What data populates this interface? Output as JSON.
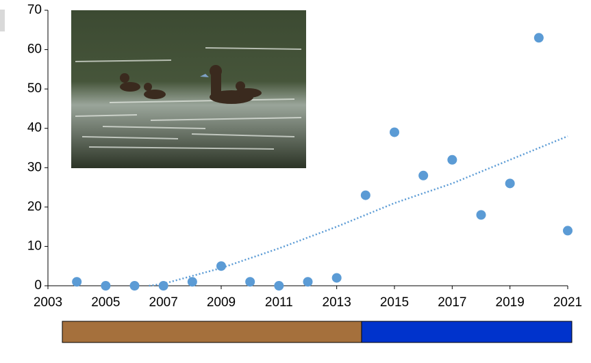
{
  "chart_data": {
    "type": "scatter",
    "x": [
      2004,
      2005,
      2006,
      2007,
      2008,
      2009,
      2010,
      2011,
      2012,
      2013,
      2014,
      2015,
      2016,
      2017,
      2018,
      2019,
      2020,
      2021
    ],
    "values": [
      1,
      0,
      0,
      0,
      1,
      5,
      1,
      0,
      1,
      2,
      23,
      39,
      28,
      32,
      18,
      26,
      63,
      14
    ],
    "color": "#5b9bd5",
    "trend": {
      "x": [
        2006.5,
        2007,
        2009,
        2011,
        2013,
        2015,
        2017,
        2019,
        2021
      ],
      "values": [
        0,
        0.5,
        4.5,
        9.5,
        15,
        21,
        26,
        32,
        38
      ],
      "color": "#5b9bd5"
    },
    "xlim": [
      2003,
      2021
    ],
    "xticks": [
      2003,
      2005,
      2007,
      2009,
      2011,
      2013,
      2015,
      2017,
      2019,
      2021
    ],
    "ylim": [
      0,
      70
    ],
    "yticks": [
      0,
      10,
      20,
      30,
      40,
      50,
      60,
      70
    ]
  }
}
